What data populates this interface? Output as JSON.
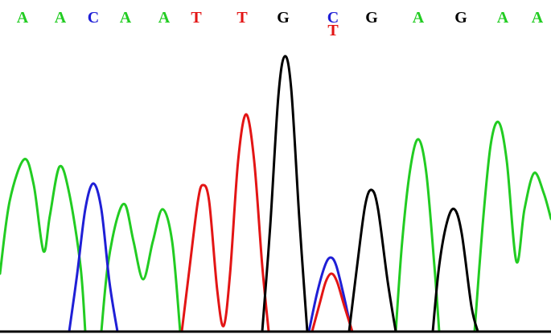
{
  "colors": {
    "A": "#22cc22",
    "C": "#1f1fd6",
    "G": "#000000",
    "T": "#e31515"
  },
  "base_calls": [
    {
      "call": "A"
    },
    {
      "call": "A"
    },
    {
      "call": "C"
    },
    {
      "call": "A"
    },
    {
      "call": "A"
    },
    {
      "call": "T"
    },
    {
      "call": "T"
    },
    {
      "call": "G"
    },
    {
      "call": "C",
      "secondary": "T"
    },
    {
      "call": "G"
    },
    {
      "call": "A"
    },
    {
      "call": "G"
    },
    {
      "call": "A"
    },
    {
      "call": "A"
    }
  ]
}
